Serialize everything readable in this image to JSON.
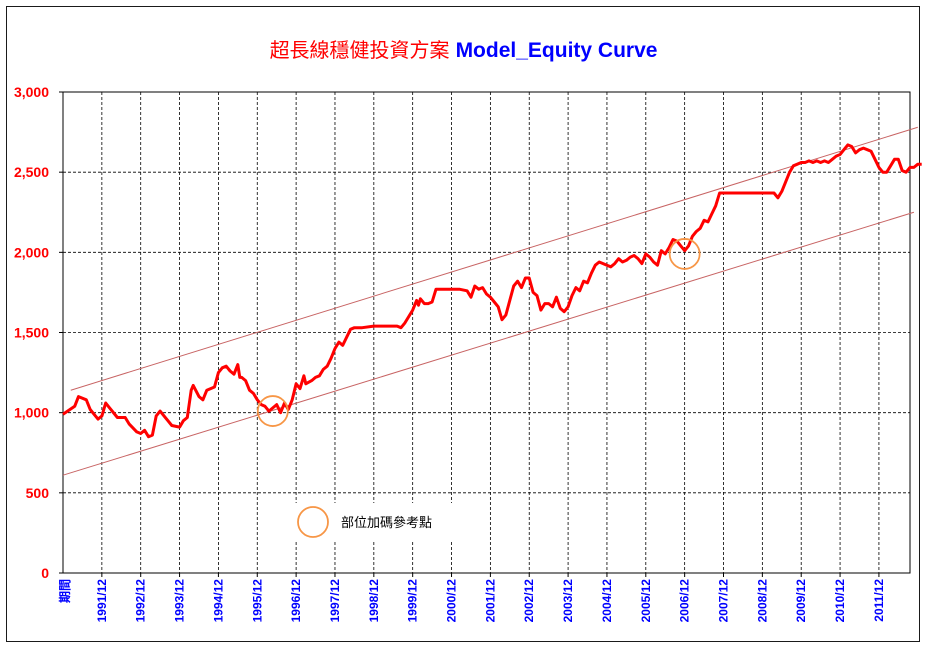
{
  "title_cn": "超長線穩健投資方案",
  "title_en": "Model_Equity Curve",
  "legend": {
    "marker_label": "部位加碼參考點"
  },
  "colors": {
    "equity_line": "#ff0000",
    "channel_line": "#c86464",
    "marker": "#f79646",
    "y_tick": "#ff0000",
    "x_tick": "#0000ff"
  },
  "chart_data": {
    "type": "line",
    "title": "超長線穩健投資方案 Model_Equity Curve",
    "ylim": [
      0,
      3000
    ],
    "y_ticks": [
      0,
      500,
      1000,
      1500,
      2000,
      2500,
      3000
    ],
    "y_tick_labels": [
      "0",
      "500",
      "1,000",
      "1,500",
      "2,000",
      "2,500",
      "3,000"
    ],
    "x_range": [
      1990.9,
      2012.7
    ],
    "x_ticks": [
      1991.9,
      1992.9,
      1993.9,
      1994.9,
      1995.9,
      1996.9,
      1997.9,
      1998.9,
      1999.9,
      2000.9,
      2001.9,
      2002.9,
      2003.9,
      2004.9,
      2005.9,
      2006.9,
      2007.9,
      2008.9,
      2009.9,
      2010.9,
      2011.9
    ],
    "x_tick_labels": [
      "1991/12",
      "1992/12",
      "1993/12",
      "1994/12",
      "1995/12",
      "1996/12",
      "1997/12",
      "1998/12",
      "1999/12",
      "2000/12",
      "2001/12",
      "2002/12",
      "2003/12",
      "2004/12",
      "2005/12",
      "2006/12",
      "2007/12",
      "2008/12",
      "2009/12",
      "2010/12",
      "2011/12"
    ],
    "x_first_label": "期間",
    "grid": true,
    "series": [
      {
        "points": [
          [
            1990.9,
            990
          ],
          [
            1991.2,
            1040
          ],
          [
            1991.3,
            1100
          ],
          [
            1991.5,
            1080
          ],
          [
            1991.6,
            1020
          ],
          [
            1991.7,
            990
          ],
          [
            1991.8,
            960
          ],
          [
            1991.9,
            980
          ],
          [
            1992.0,
            1060
          ],
          [
            1992.1,
            1030
          ],
          [
            1992.3,
            970
          ],
          [
            1992.5,
            970
          ],
          [
            1992.6,
            930
          ],
          [
            1992.8,
            880
          ],
          [
            1992.9,
            870
          ],
          [
            1993.0,
            890
          ],
          [
            1993.1,
            850
          ],
          [
            1993.2,
            860
          ],
          [
            1993.3,
            980
          ],
          [
            1993.4,
            1010
          ],
          [
            1993.5,
            980
          ],
          [
            1993.6,
            950
          ],
          [
            1993.7,
            920
          ],
          [
            1993.9,
            910
          ],
          [
            1994.0,
            950
          ],
          [
            1994.1,
            970
          ],
          [
            1994.2,
            1140
          ],
          [
            1994.25,
            1170
          ],
          [
            1994.4,
            1100
          ],
          [
            1994.5,
            1080
          ],
          [
            1994.6,
            1140
          ],
          [
            1994.8,
            1160
          ],
          [
            1994.9,
            1250
          ],
          [
            1995.0,
            1280
          ],
          [
            1995.1,
            1290
          ],
          [
            1995.2,
            1260
          ],
          [
            1995.3,
            1240
          ],
          [
            1995.4,
            1300
          ],
          [
            1995.45,
            1220
          ],
          [
            1995.5,
            1220
          ],
          [
            1995.6,
            1200
          ],
          [
            1995.7,
            1140
          ],
          [
            1995.8,
            1120
          ],
          [
            1995.9,
            1080
          ],
          [
            1996.0,
            1050
          ],
          [
            1996.1,
            1040
          ],
          [
            1996.2,
            1010
          ],
          [
            1996.3,
            1030
          ],
          [
            1996.4,
            1050
          ],
          [
            1996.5,
            1000
          ],
          [
            1996.6,
            1060
          ],
          [
            1996.7,
            1020
          ],
          [
            1996.8,
            1080
          ],
          [
            1996.9,
            1180
          ],
          [
            1997.0,
            1150
          ],
          [
            1997.1,
            1230
          ],
          [
            1997.15,
            1180
          ],
          [
            1997.3,
            1200
          ],
          [
            1997.4,
            1220
          ],
          [
            1997.5,
            1230
          ],
          [
            1997.6,
            1270
          ],
          [
            1997.7,
            1290
          ],
          [
            1997.8,
            1340
          ],
          [
            1997.9,
            1400
          ],
          [
            1998.0,
            1440
          ],
          [
            1998.1,
            1420
          ],
          [
            1998.2,
            1470
          ],
          [
            1998.3,
            1520
          ],
          [
            1998.4,
            1530
          ],
          [
            1998.6,
            1530
          ],
          [
            1998.9,
            1540
          ],
          [
            1999.1,
            1540
          ],
          [
            1999.3,
            1540
          ],
          [
            1999.5,
            1540
          ],
          [
            1999.6,
            1530
          ],
          [
            1999.7,
            1560
          ],
          [
            1999.8,
            1600
          ],
          [
            1999.9,
            1640
          ],
          [
            2000.0,
            1700
          ],
          [
            2000.05,
            1670
          ],
          [
            2000.1,
            1710
          ],
          [
            2000.2,
            1680
          ],
          [
            2000.3,
            1680
          ],
          [
            2000.4,
            1690
          ],
          [
            2000.5,
            1770
          ],
          [
            2000.7,
            1770
          ],
          [
            2000.9,
            1770
          ],
          [
            2001.1,
            1770
          ],
          [
            2001.3,
            1760
          ],
          [
            2001.4,
            1720
          ],
          [
            2001.5,
            1790
          ],
          [
            2001.6,
            1770
          ],
          [
            2001.7,
            1780
          ],
          [
            2001.8,
            1740
          ],
          [
            2001.9,
            1720
          ],
          [
            2002.0,
            1690
          ],
          [
            2002.1,
            1660
          ],
          [
            2002.2,
            1580
          ],
          [
            2002.3,
            1610
          ],
          [
            2002.4,
            1700
          ],
          [
            2002.5,
            1790
          ],
          [
            2002.6,
            1820
          ],
          [
            2002.7,
            1780
          ],
          [
            2002.8,
            1840
          ],
          [
            2002.9,
            1840
          ],
          [
            2003.0,
            1750
          ],
          [
            2003.1,
            1730
          ],
          [
            2003.2,
            1640
          ],
          [
            2003.3,
            1680
          ],
          [
            2003.4,
            1680
          ],
          [
            2003.5,
            1660
          ],
          [
            2003.6,
            1720
          ],
          [
            2003.7,
            1650
          ],
          [
            2003.8,
            1630
          ],
          [
            2003.9,
            1660
          ],
          [
            2004.0,
            1730
          ],
          [
            2004.1,
            1780
          ],
          [
            2004.2,
            1760
          ],
          [
            2004.3,
            1820
          ],
          [
            2004.4,
            1810
          ],
          [
            2004.5,
            1870
          ],
          [
            2004.6,
            1920
          ],
          [
            2004.7,
            1940
          ],
          [
            2004.8,
            1930
          ],
          [
            2004.9,
            1920
          ],
          [
            2005.0,
            1910
          ],
          [
            2005.1,
            1930
          ],
          [
            2005.2,
            1960
          ],
          [
            2005.3,
            1940
          ],
          [
            2005.4,
            1950
          ],
          [
            2005.5,
            1970
          ],
          [
            2005.6,
            1980
          ],
          [
            2005.7,
            1960
          ],
          [
            2005.8,
            1930
          ],
          [
            2005.9,
            1990
          ],
          [
            2006.0,
            1970
          ],
          [
            2006.1,
            1940
          ],
          [
            2006.2,
            1920
          ],
          [
            2006.3,
            2010
          ],
          [
            2006.4,
            1990
          ],
          [
            2006.5,
            2030
          ],
          [
            2006.6,
            2080
          ],
          [
            2006.7,
            2070
          ],
          [
            2006.8,
            2040
          ],
          [
            2006.9,
            2010
          ],
          [
            2007.0,
            2040
          ],
          [
            2007.1,
            2100
          ],
          [
            2007.2,
            2130
          ],
          [
            2007.3,
            2150
          ],
          [
            2007.4,
            2200
          ],
          [
            2007.5,
            2190
          ],
          [
            2007.6,
            2240
          ],
          [
            2007.7,
            2290
          ],
          [
            2007.8,
            2370
          ],
          [
            2008.0,
            2370
          ],
          [
            2008.5,
            2370
          ],
          [
            2009.0,
            2370
          ],
          [
            2009.2,
            2370
          ],
          [
            2009.3,
            2340
          ],
          [
            2009.4,
            2380
          ],
          [
            2009.5,
            2440
          ],
          [
            2009.6,
            2500
          ],
          [
            2009.7,
            2540
          ],
          [
            2009.8,
            2550
          ],
          [
            2009.9,
            2560
          ],
          [
            2010.0,
            2560
          ],
          [
            2010.1,
            2570
          ],
          [
            2010.2,
            2560
          ],
          [
            2010.3,
            2570
          ],
          [
            2010.4,
            2560
          ],
          [
            2010.5,
            2570
          ],
          [
            2010.6,
            2560
          ],
          [
            2010.7,
            2580
          ],
          [
            2010.8,
            2600
          ],
          [
            2010.9,
            2610
          ],
          [
            2011.0,
            2640
          ],
          [
            2011.1,
            2670
          ],
          [
            2011.2,
            2660
          ],
          [
            2011.3,
            2620
          ],
          [
            2011.4,
            2640
          ],
          [
            2011.5,
            2650
          ],
          [
            2011.6,
            2640
          ],
          [
            2011.7,
            2630
          ],
          [
            2011.8,
            2580
          ],
          [
            2011.9,
            2530
          ],
          [
            2012.0,
            2500
          ],
          [
            2012.1,
            2500
          ],
          [
            2012.2,
            2540
          ],
          [
            2012.3,
            2580
          ],
          [
            2012.4,
            2580
          ],
          [
            2012.5,
            2510
          ],
          [
            2012.6,
            2500
          ],
          [
            2012.7,
            2530
          ],
          [
            2012.8,
            2530
          ],
          [
            2012.9,
            2550
          ],
          [
            2013.0,
            2550
          ]
        ]
      }
    ],
    "channel_lines": [
      {
        "from": [
          1991.1,
          1140
        ],
        "to": [
          2012.9,
          2780
        ]
      },
      {
        "from": [
          1990.9,
          610
        ],
        "to": [
          2012.8,
          2250
        ]
      }
    ],
    "markers": [
      {
        "x": 1996.3,
        "y": 1010
      },
      {
        "x": 2006.9,
        "y": 1990
      }
    ]
  }
}
